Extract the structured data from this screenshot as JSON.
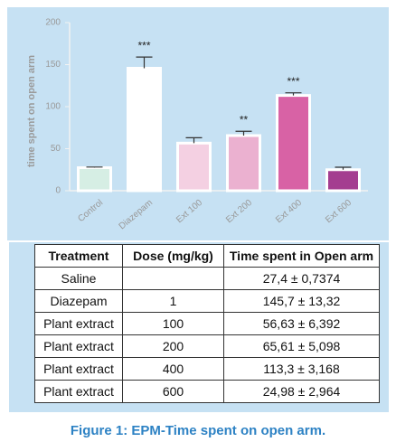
{
  "chart_data": {
    "type": "bar",
    "y_label": "time spent on open arm",
    "categories": [
      "Control",
      "Diazepam",
      "Ext 100",
      "Ext 200",
      "Ext 400",
      "Ext 600"
    ],
    "values": [
      27.4,
      145.7,
      56.63,
      65.61,
      113.3,
      24.98
    ],
    "errors": [
      0.7374,
      13.32,
      6.392,
      5.098,
      3.168,
      2.964
    ],
    "colors": [
      "#d6eee4",
      "#ffffff",
      "#f4d0e2",
      "#ebb1d0",
      "#d862a5",
      "#a43d90"
    ],
    "annotations": [
      null,
      "***",
      null,
      "**",
      "***",
      null
    ],
    "ylim": [
      0,
      200
    ],
    "yticks": [
      0,
      50,
      100,
      150,
      200
    ]
  },
  "table": {
    "header": [
      "Treatment",
      "Dose (mg/kg)",
      "Time spent in Open arm"
    ],
    "rows": [
      {
        "treatment": "Saline",
        "time": "27,4 ± 0,7374"
      },
      {
        "treatment": "Diazepam",
        "dose": "1",
        "time": "145,7 ± 13,32"
      },
      {
        "treatment": "Plant extract",
        "dose": "100",
        "time": "56,63 ± 6,392"
      },
      {
        "treatment": "Plant extract",
        "dose": "200",
        "time": "65,61 ± 5,098"
      },
      {
        "treatment": "Plant extract",
        "dose": "400",
        "time": "113,3 ± 3,168"
      },
      {
        "treatment": "Plant extract",
        "dose": "600",
        "time": "24,98 ± 2,964"
      }
    ]
  },
  "caption": "Figure 1: EPM-Time spent on open arm."
}
